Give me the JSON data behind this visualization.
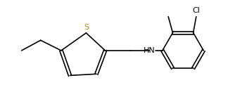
{
  "bg_color": "#ffffff",
  "line_color": "#000000",
  "text_color": "#000000",
  "atom_colors": {
    "S": "#c8a000",
    "N": "#000000",
    "Cl": "#000000",
    "C": "#000000"
  },
  "figsize": [
    3.24,
    1.48
  ],
  "dpi": 100
}
